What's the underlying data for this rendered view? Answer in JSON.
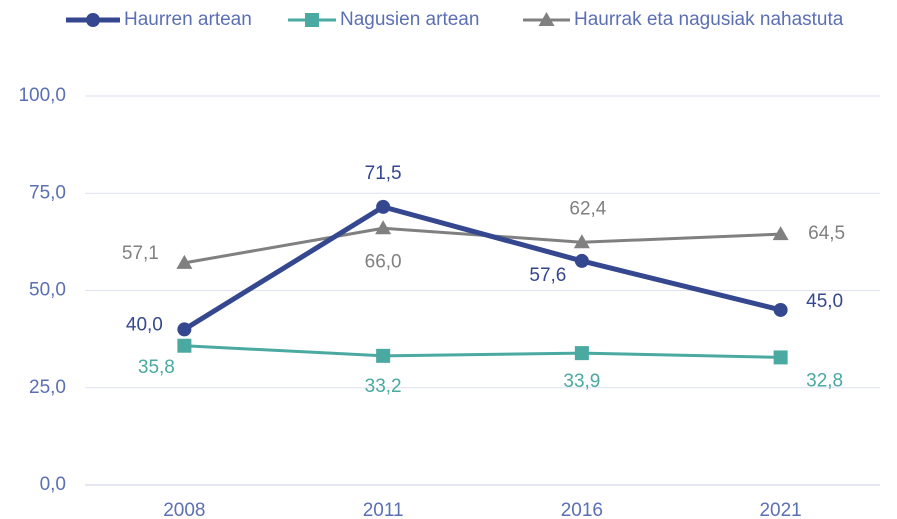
{
  "chart_data": {
    "type": "line",
    "categories": [
      "2008",
      "2011",
      "2016",
      "2021"
    ],
    "series": [
      {
        "name": "Haurren artean",
        "color": "#34478f",
        "marker": "circle",
        "values": [
          40.0,
          71.5,
          57.6,
          45.0
        ],
        "value_labels": [
          "40,0",
          "71,5",
          "57,6",
          "45,0"
        ]
      },
      {
        "name": "Nagusien artean",
        "color": "#4aa9a0",
        "marker": "square",
        "values": [
          35.8,
          33.2,
          33.9,
          32.8
        ],
        "value_labels": [
          "35,8",
          "33,2",
          "33,9",
          "32,8"
        ]
      },
      {
        "name": "Haurrak eta nagusiak nahastuta",
        "color": "#808080",
        "marker": "triangle",
        "values": [
          57.1,
          66.0,
          62.4,
          64.5
        ],
        "value_labels": [
          "57,1",
          "66,0",
          "62,4",
          "64,5"
        ]
      }
    ],
    "ylim": [
      0,
      100
    ],
    "yticks": [
      {
        "value": 0,
        "label": "0,0"
      },
      {
        "value": 25,
        "label": "25,0"
      },
      {
        "value": 50,
        "label": "50,0"
      },
      {
        "value": 75,
        "label": "75,0"
      },
      {
        "value": 100,
        "label": "100,0"
      }
    ],
    "grid": true,
    "legend": "top"
  }
}
